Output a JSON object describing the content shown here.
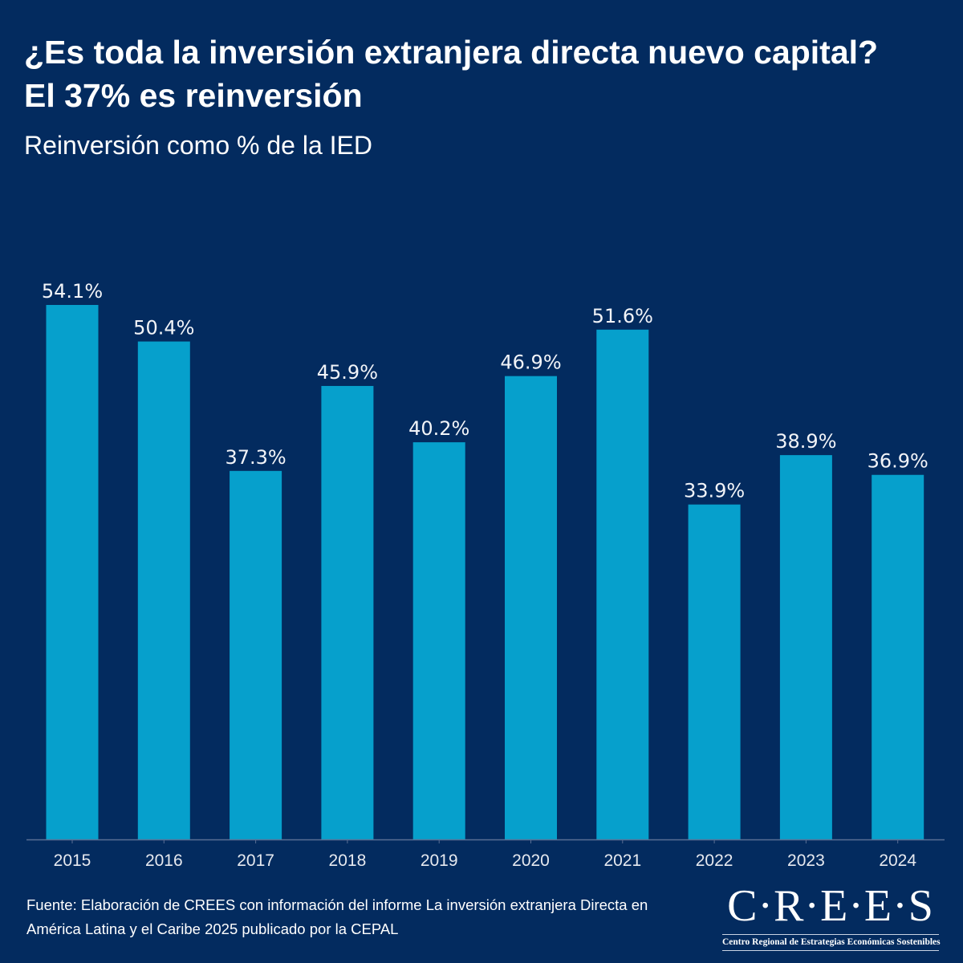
{
  "header": {
    "title_line1": "¿Es toda la inversión extranjera directa nuevo capital?",
    "title_line2": "El 37% es reinversión",
    "subtitle": "Reinversión como % de la IED"
  },
  "footer": {
    "source_line1": "Fuente: Elaboración de CREES con información del informe La inversión extranjera Directa en",
    "source_line2": "América Latina y el Caribe 2025 publicado por la CEPAL"
  },
  "logo": {
    "mark": "C·R·E·E·S",
    "tagline": "Centro Regional de Estrategias Económicas Sostenibles"
  },
  "colors": {
    "background": "#032b5f",
    "bar": "#06a0cc",
    "axis": "#5a6f94",
    "text": "#ffffff"
  },
  "chart_data": {
    "type": "bar",
    "title": "Reinversión como % de la IED",
    "xlabel": "",
    "ylabel": "",
    "categories": [
      "2015",
      "2016",
      "2017",
      "2018",
      "2019",
      "2020",
      "2021",
      "2022",
      "2023",
      "2024"
    ],
    "values": [
      54.1,
      50.4,
      37.3,
      45.9,
      40.2,
      46.9,
      51.6,
      33.9,
      38.9,
      36.9
    ],
    "data_labels": [
      "54.1%",
      "50.4%",
      "37.3%",
      "45.9%",
      "40.2%",
      "46.9%",
      "51.6%",
      "33.9%",
      "38.9%",
      "36.9%"
    ],
    "ylim": [
      0,
      54.1
    ],
    "grid": false,
    "legend": "none"
  }
}
